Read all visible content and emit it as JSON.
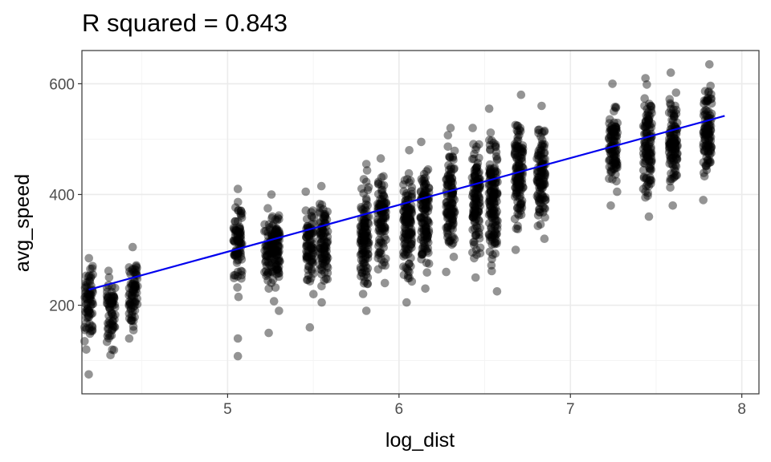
{
  "chart_data": {
    "type": "scatter",
    "title": "R squared = 0.843",
    "xlabel": "log_dist",
    "ylabel": "avg_speed",
    "xlim": [
      4.15,
      8.1
    ],
    "ylim": [
      40,
      660
    ],
    "x_ticks": [
      5,
      6,
      7,
      8
    ],
    "y_ticks": [
      200,
      400,
      600
    ],
    "grid": true,
    "colors": {
      "points": "#000000",
      "point_alpha": 0.42,
      "fit_line": "#0000ee"
    },
    "series": [
      {
        "type": "scatter",
        "point_groups": [
          {
            "x": 4.19,
            "y_min": 120,
            "y_max": 285,
            "outliers": [
              75
            ]
          },
          {
            "x": 4.32,
            "y_min": 110,
            "y_max": 262,
            "outliers": []
          },
          {
            "x": 4.45,
            "y_min": 140,
            "y_max": 305,
            "outliers": []
          },
          {
            "x": 5.06,
            "y_min": 215,
            "y_max": 410,
            "outliers": [
              108,
              140
            ]
          },
          {
            "x": 5.24,
            "y_min": 230,
            "y_max": 375,
            "outliers": [
              150
            ]
          },
          {
            "x": 5.28,
            "y_min": 190,
            "y_max": 400,
            "outliers": []
          },
          {
            "x": 5.48,
            "y_min": 220,
            "y_max": 405,
            "outliers": [
              160
            ]
          },
          {
            "x": 5.56,
            "y_min": 205,
            "y_max": 415,
            "outliers": []
          },
          {
            "x": 5.8,
            "y_min": 190,
            "y_max": 455,
            "outliers": []
          },
          {
            "x": 5.9,
            "y_min": 240,
            "y_max": 465,
            "outliers": []
          },
          {
            "x": 6.05,
            "y_min": 205,
            "y_max": 480,
            "outliers": []
          },
          {
            "x": 6.15,
            "y_min": 230,
            "y_max": 495,
            "outliers": []
          },
          {
            "x": 6.3,
            "y_min": 260,
            "y_max": 520,
            "outliers": []
          },
          {
            "x": 6.45,
            "y_min": 250,
            "y_max": 520,
            "outliers": []
          },
          {
            "x": 6.55,
            "y_min": 225,
            "y_max": 555,
            "outliers": []
          },
          {
            "x": 6.7,
            "y_min": 300,
            "y_max": 580,
            "outliers": []
          },
          {
            "x": 6.83,
            "y_min": 320,
            "y_max": 560,
            "outliers": []
          },
          {
            "x": 7.25,
            "y_min": 380,
            "y_max": 600,
            "outliers": []
          },
          {
            "x": 7.45,
            "y_min": 360,
            "y_max": 610,
            "outliers": []
          },
          {
            "x": 7.6,
            "y_min": 380,
            "y_max": 620,
            "outliers": []
          },
          {
            "x": 7.8,
            "y_min": 390,
            "y_max": 635,
            "outliers": []
          }
        ]
      },
      {
        "type": "line",
        "x": [
          4.19,
          7.9
        ],
        "y": [
          228,
          542
        ]
      }
    ]
  }
}
